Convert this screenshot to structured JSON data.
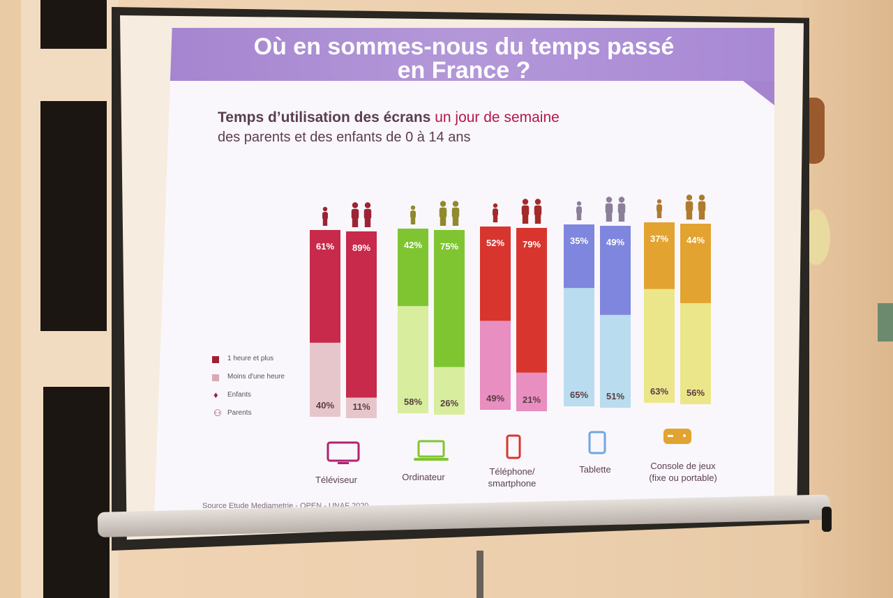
{
  "slide": {
    "title_line1": "Où en sommes-nous du temps passé",
    "title_line2": "en France ?",
    "subtitle_bold": "Temps d’utilisation des écrans",
    "subtitle_accent": " un jour de semaine",
    "subtitle_line2": "des parents et des enfants de 0 à 14 ans",
    "source": "Source Etude Mediametrie  - OPEN - UNAF 2020"
  },
  "legend": {
    "items": [
      {
        "label": "1 heure et plus",
        "color": "#9e1f37"
      },
      {
        "label": "Moins d'une heure",
        "color": "#d9a9b3"
      },
      {
        "label": "Enfants",
        "icon": "child-icon"
      },
      {
        "label": "Parents",
        "icon": "parents-icon"
      }
    ]
  },
  "chart_data": {
    "type": "bar",
    "stacked": true,
    "ylim": [
      0,
      100
    ],
    "categories": [
      "Téléviseur",
      "Ordinateur",
      "Téléphone/\nsmartphone",
      "Tablette",
      "Console de jeux\n(fixe ou portable)"
    ],
    "device_icons": [
      "tv-icon",
      "laptop-icon",
      "smartphone-icon",
      "tablet-icon",
      "gamepad-icon"
    ],
    "groups": [
      "Enfants",
      "Parents"
    ],
    "series": [
      {
        "name": "1 heure et plus",
        "values": {
          "Enfants": [
            61,
            42,
            52,
            35,
            37
          ],
          "Parents": [
            89,
            75,
            79,
            49,
            44
          ]
        }
      },
      {
        "name": "Moins d'une heure",
        "values": {
          "Enfants": [
            40,
            58,
            49,
            65,
            63
          ],
          "Parents": [
            11,
            26,
            21,
            51,
            56
          ]
        }
      }
    ],
    "colors": [
      {
        "dark": "#c72a4a",
        "light": "#e7c6cb"
      },
      {
        "dark": "#7fc531",
        "light": "#d8ee9e"
      },
      {
        "dark": "#d8352f",
        "light": "#e88ec0"
      },
      {
        "dark": "#7f86dd",
        "light": "#b9dcef"
      },
      {
        "dark": "#e2a330",
        "light": "#ece68a"
      }
    ],
    "person_colors": [
      "#9b2335",
      "#8f8a2c",
      "#a42a2a",
      "#8b7f9a",
      "#b07a2e"
    ]
  }
}
